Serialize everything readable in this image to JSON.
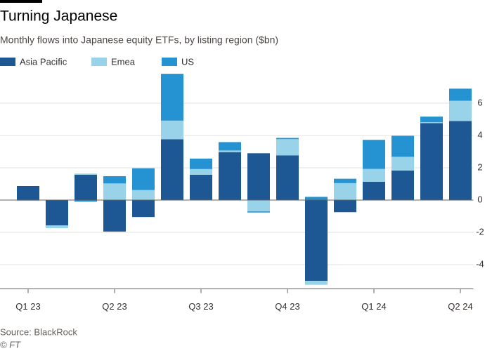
{
  "chart_data": {
    "type": "stacked-bar",
    "title": "Turning Japanese",
    "subtitle": "Monthly flows into Japanese equity ETFs, by listing region ($bn)",
    "source": "Source: BlackRock",
    "credit": "© FT",
    "categories": [
      "Q1 23",
      null,
      null,
      "Q2 23",
      null,
      null,
      "Q3 23",
      null,
      null,
      "Q4 23",
      null,
      null,
      "Q1 24",
      null,
      null,
      "Q2 24"
    ],
    "series": [
      {
        "name": "Asia Pacific",
        "color": "#1d5895",
        "values": [
          0.87,
          -1.57,
          1.57,
          -1.95,
          -1.05,
          3.77,
          1.57,
          2.97,
          2.9,
          2.77,
          -5.0,
          -0.75,
          1.13,
          1.83,
          4.77,
          4.9
        ]
      },
      {
        "name": "Emea",
        "color": "#98d3e9",
        "values": [
          -0.05,
          -0.17,
          0.07,
          1.03,
          0.62,
          1.15,
          0.35,
          0.1,
          -0.7,
          1.0,
          -0.25,
          1.05,
          0.8,
          0.85,
          0.05,
          1.25
        ]
      },
      {
        "name": "US",
        "color": "#2592d1",
        "values": [
          0,
          0.02,
          -0.1,
          0.45,
          1.35,
          2.9,
          0.65,
          0.52,
          -0.07,
          0.08,
          0.2,
          0.27,
          1.8,
          1.3,
          0.35,
          0.75
        ]
      }
    ],
    "ylim": [
      -5.5,
      7.5
    ],
    "yticks": [
      -4,
      -2,
      0,
      2,
      4,
      6
    ],
    "grid": true
  }
}
